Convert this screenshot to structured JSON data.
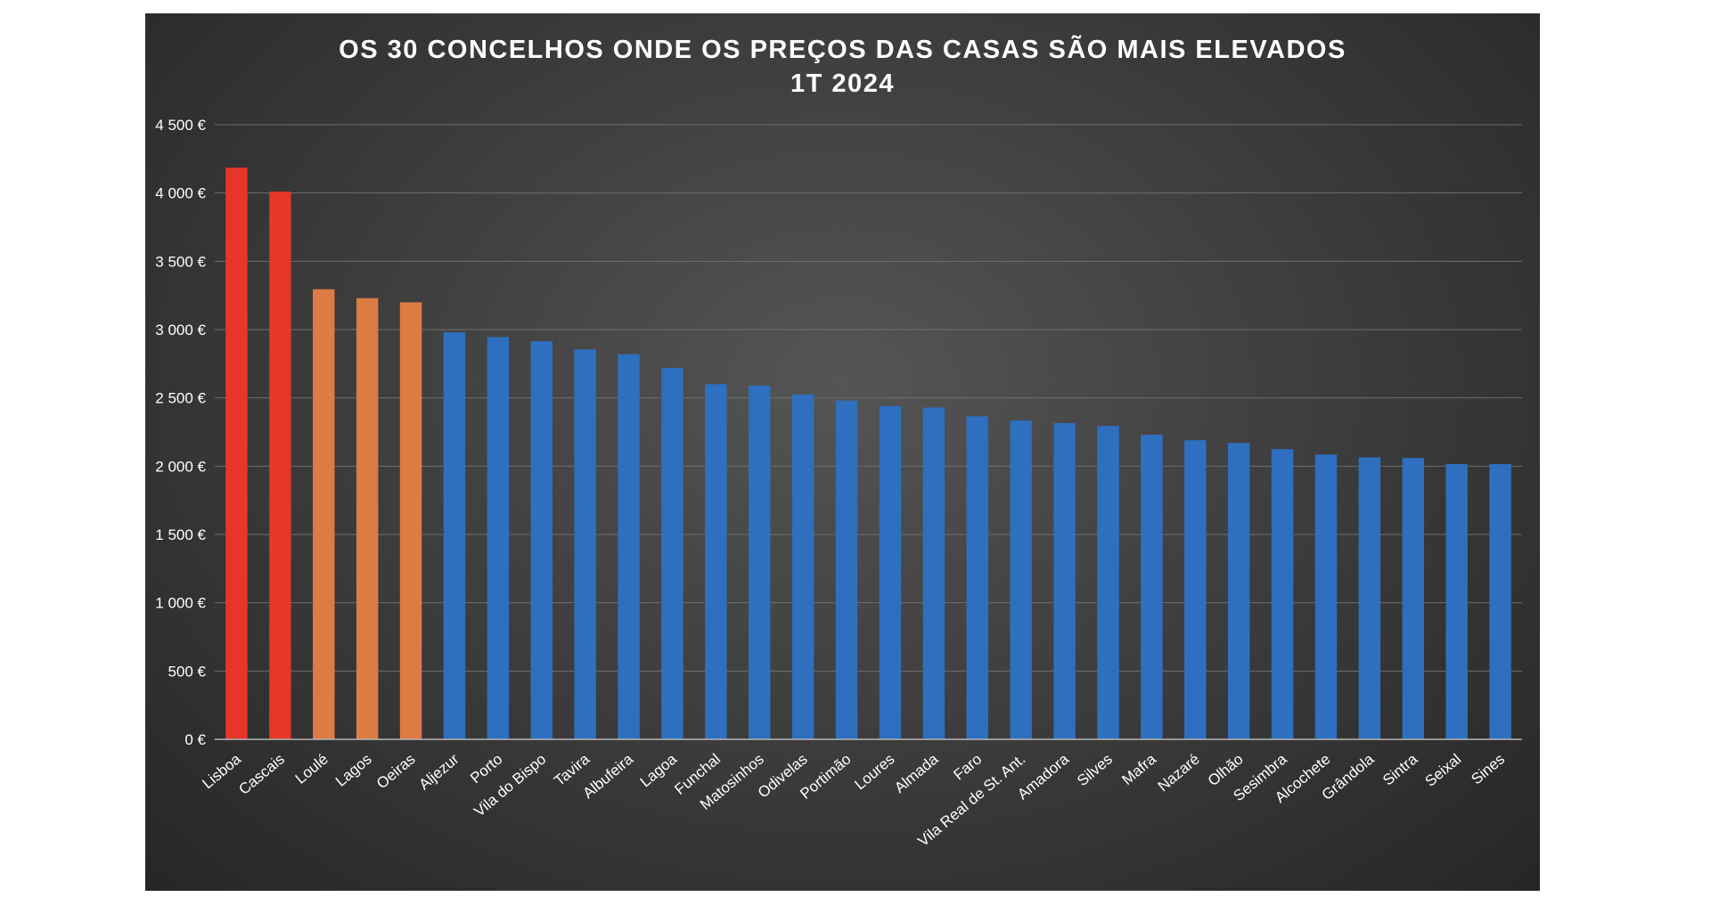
{
  "chart_data": {
    "type": "bar",
    "title": "OS 30 CONCELHOS ONDE OS PREÇOS DAS CASAS SÃO MAIS ELEVADOS",
    "subtitle": "1T 2024",
    "xlabel": "",
    "ylabel": "",
    "ylim": [
      0,
      4500
    ],
    "yticks": [
      0,
      500,
      1000,
      1500,
      2000,
      2500,
      3000,
      3500,
      4000,
      4500
    ],
    "ytick_labels": [
      "0 €",
      "500 €",
      "1 000 €",
      "1 500 €",
      "2 000 €",
      "2 500 €",
      "3 000 €",
      "3 500 €",
      "4 000 €",
      "4 500 €"
    ],
    "grid": true,
    "legend": "none",
    "categories": [
      "Lisboa",
      "Cascais",
      "Loulé",
      "Lagos",
      "Oeiras",
      "Aljezur",
      "Porto",
      "Vila do Bispo",
      "Tavira",
      "Albufeira",
      "Lagoa",
      "Funchal",
      "Matosinhos",
      "Odivelas",
      "Portimão",
      "Loures",
      "Almada",
      "Faro",
      "Vila Real de St. Ant.",
      "Amadora",
      "Silves",
      "Mafra",
      "Nazaré",
      "Olhão",
      "Sesimbra",
      "Alcochete",
      "Grândola",
      "Sintra",
      "Seixal",
      "Sines"
    ],
    "values": [
      4185,
      4010,
      3295,
      3230,
      3200,
      2980,
      2945,
      2915,
      2855,
      2820,
      2720,
      2600,
      2590,
      2525,
      2480,
      2440,
      2430,
      2365,
      2335,
      2315,
      2295,
      2230,
      2190,
      2170,
      2125,
      2085,
      2065,
      2060,
      2015,
      2015
    ],
    "bar_colors": [
      "#e8352a",
      "#e8352a",
      "#dd7b45",
      "#dd7b45",
      "#dd7b45",
      "#2e6fbf",
      "#2e6fbf",
      "#2e6fbf",
      "#2e6fbf",
      "#2e6fbf",
      "#2e6fbf",
      "#2e6fbf",
      "#2e6fbf",
      "#2e6fbf",
      "#2e6fbf",
      "#2e6fbf",
      "#2e6fbf",
      "#2e6fbf",
      "#2e6fbf",
      "#2e6fbf",
      "#2e6fbf",
      "#2e6fbf",
      "#2e6fbf",
      "#2e6fbf",
      "#2e6fbf",
      "#2e6fbf",
      "#2e6fbf",
      "#2e6fbf",
      "#2e6fbf",
      "#2e6fbf"
    ]
  }
}
